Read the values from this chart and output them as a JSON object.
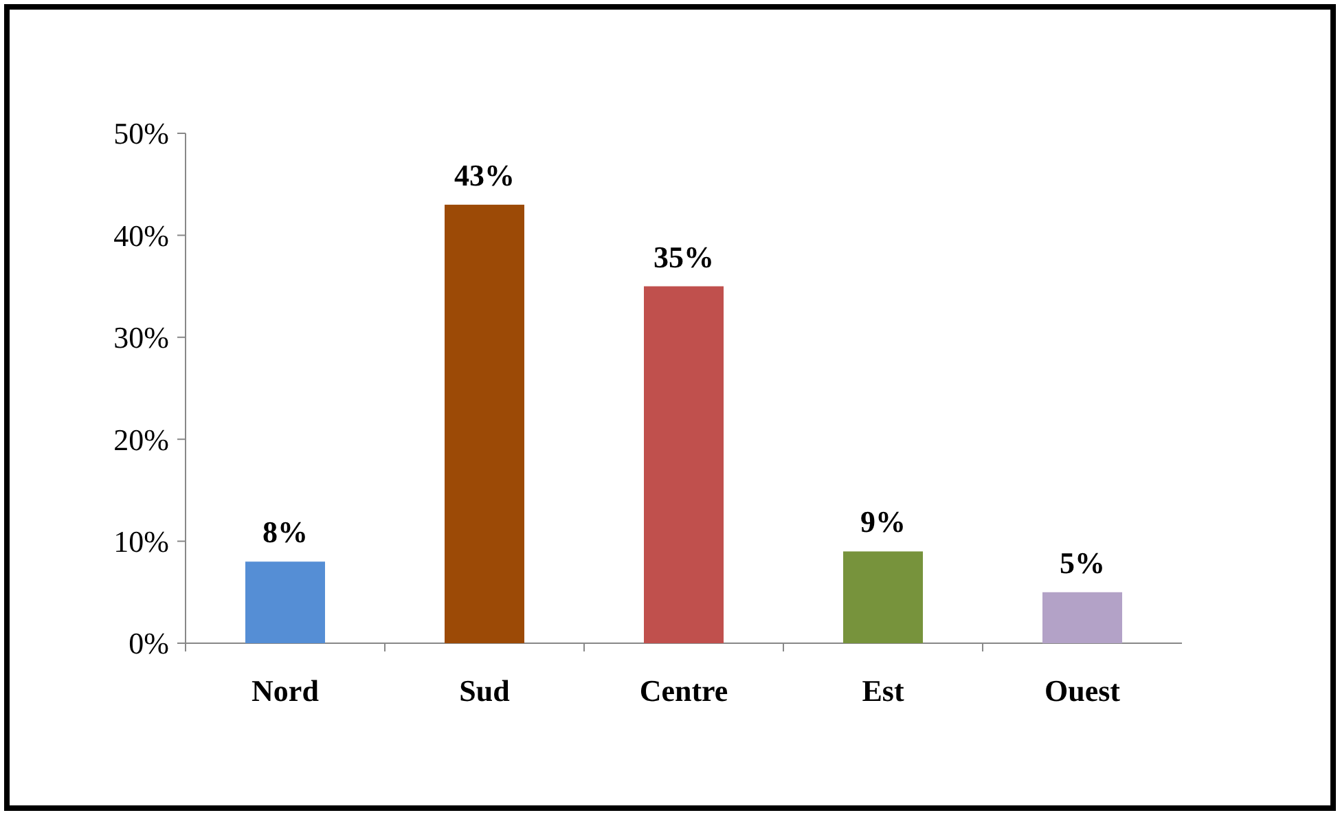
{
  "chart_data": {
    "type": "bar",
    "categories": [
      "Nord",
      "Sud",
      "Centre",
      "Est",
      "Ouest"
    ],
    "values": [
      8,
      43,
      35,
      9,
      5
    ],
    "colors": [
      "#558ed5",
      "#9c4a06",
      "#c0504d",
      "#77933c",
      "#b3a2c7"
    ],
    "ylim": [
      0,
      50
    ],
    "yticks": [
      {
        "value": 0,
        "label": "0%"
      },
      {
        "value": 10,
        "label": "10%"
      },
      {
        "value": 20,
        "label": "20%"
      },
      {
        "value": 30,
        "label": "30%"
      },
      {
        "value": 40,
        "label": "40%"
      },
      {
        "value": 50,
        "label": "50%"
      }
    ],
    "value_labels": [
      "8%",
      "43%",
      "35%",
      "9%",
      "5%"
    ],
    "grid": false
  }
}
